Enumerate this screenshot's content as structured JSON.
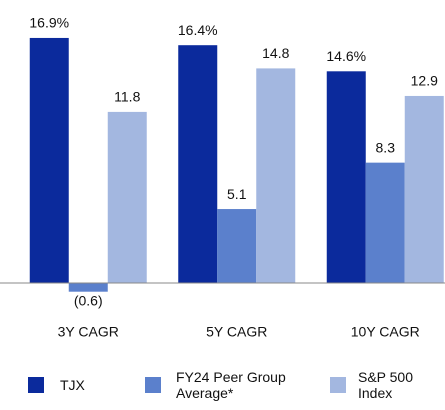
{
  "chart_data": {
    "type": "bar",
    "categories": [
      "3Y CAGR",
      "5Y CAGR",
      "10Y CAGR"
    ],
    "series": [
      {
        "name": "TJX",
        "color": "#0b2a9c",
        "values": [
          16.9,
          16.4,
          14.6
        ],
        "value_labels": [
          "16.9%",
          "16.4%",
          "14.6%"
        ]
      },
      {
        "name": "FY24 Peer Group Average*",
        "color": "#5b80cc",
        "values": [
          -0.6,
          5.1,
          8.3
        ],
        "value_labels": [
          "(0.6)",
          "5.1",
          "8.3"
        ]
      },
      {
        "name": "S&P 500 Index",
        "color": "#a3b7e0",
        "values": [
          11.8,
          14.8,
          12.9
        ]
      }
    ],
    "ylim": [
      -2,
      19.5
    ],
    "grid": false,
    "legend": "bottom"
  }
}
